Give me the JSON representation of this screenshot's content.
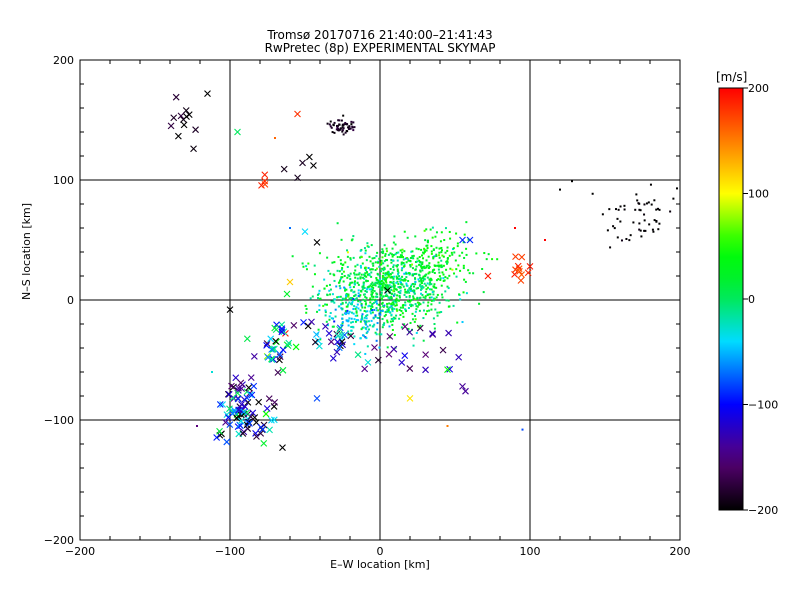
{
  "chart_data": {
    "type": "scatter",
    "title": "Tromsø 20170716 21:40:00–21:41:43",
    "subtitle": "RwPretec (8p) EXPERIMENTAL SKYMAP",
    "xlabel": "E–W location [km]",
    "ylabel": "N–S location [km]",
    "xlim": [
      -200,
      200
    ],
    "ylim": [
      -200,
      200
    ],
    "xticks": [
      "−200",
      "−100",
      "0",
      "100",
      "200"
    ],
    "yticks": [
      "−200",
      "−100",
      "0",
      "100",
      "200"
    ],
    "grid": true,
    "markers": [
      "x",
      "."
    ],
    "colorbar": {
      "label": "[m/s]",
      "min": -200,
      "max": 200,
      "ticks": [
        "−200",
        "−100",
        "0",
        "100",
        "200"
      ],
      "colormap": "rainbow: black-purple-blue-cyan-green-yellow-red"
    },
    "clusters": [
      {
        "cx": 5,
        "cy": 10,
        "sx": 22,
        "sy": 18,
        "vmean": 10,
        "vsd": 25,
        "n": 900,
        "marker": "."
      },
      {
        "cx": 35,
        "cy": 35,
        "sx": 15,
        "sy": 12,
        "vmean": 30,
        "vsd": 15,
        "n": 160,
        "marker": "."
      },
      {
        "cx": -15,
        "cy": -15,
        "sx": 10,
        "sy": 10,
        "vmean": -40,
        "vsd": 20,
        "n": 120,
        "marker": "."
      },
      {
        "cx": -25,
        "cy": 145,
        "sx": 5,
        "sy": 3,
        "vmean": -190,
        "vsd": 8,
        "n": 55,
        "marker": "."
      },
      {
        "cx": 170,
        "cy": 70,
        "sx": 14,
        "sy": 10,
        "vmean": -200,
        "vsd": 3,
        "n": 55,
        "marker": "."
      },
      {
        "cx": -90,
        "cy": -90,
        "sx": 10,
        "sy": 15,
        "vmean": -120,
        "vsd": 70,
        "n": 90,
        "marker": "x"
      },
      {
        "cx": -70,
        "cy": -40,
        "sx": 8,
        "sy": 15,
        "vmean": -60,
        "vsd": 90,
        "n": 35,
        "marker": "x"
      },
      {
        "cx": 30,
        "cy": -40,
        "sx": 15,
        "sy": 10,
        "vmean": -150,
        "vsd": 20,
        "n": 20,
        "marker": "x"
      },
      {
        "cx": -30,
        "cy": -30,
        "sx": 10,
        "sy": 8,
        "vmean": -90,
        "vsd": 70,
        "n": 25,
        "marker": "x"
      },
      {
        "cx": 92,
        "cy": 25,
        "sx": 4,
        "sy": 7,
        "vmean": 180,
        "vsd": 10,
        "n": 10,
        "marker": "x"
      },
      {
        "cx": -130,
        "cy": 150,
        "sx": 6,
        "sy": 12,
        "vmean": -190,
        "vsd": 10,
        "n": 12,
        "marker": "x"
      },
      {
        "cx": -55,
        "cy": 112,
        "sx": 5,
        "sy": 6,
        "vmean": -190,
        "vsd": 8,
        "n": 5,
        "marker": "x"
      },
      {
        "cx": -78,
        "cy": 100,
        "sx": 3,
        "sy": 3,
        "vmean": 185,
        "vsd": 5,
        "n": 4,
        "marker": "x"
      }
    ],
    "points": [
      {
        "x": -115,
        "y": 172,
        "v": -200,
        "m": "x"
      },
      {
        "x": -55,
        "y": 155,
        "v": 180,
        "m": "x"
      },
      {
        "x": -95,
        "y": 140,
        "v": 0,
        "m": "x"
      },
      {
        "x": -42,
        "y": 48,
        "v": -200,
        "m": "x"
      },
      {
        "x": -50,
        "y": 57,
        "v": -40,
        "m": "x"
      },
      {
        "x": -60,
        "y": 15,
        "v": 120,
        "m": "x"
      },
      {
        "x": -62,
        "y": 5,
        "v": 20,
        "m": "x"
      },
      {
        "x": 55,
        "y": 50,
        "v": -90,
        "m": "x"
      },
      {
        "x": 60,
        "y": 50,
        "v": -90,
        "m": "x"
      },
      {
        "x": 20,
        "y": -82,
        "v": 110,
        "m": "x"
      },
      {
        "x": 55,
        "y": -72,
        "v": -140,
        "m": "x"
      },
      {
        "x": 57,
        "y": -76,
        "v": -140,
        "m": "x"
      },
      {
        "x": 45,
        "y": -58,
        "v": 50,
        "m": "x"
      },
      {
        "x": -100,
        "y": -8,
        "v": -200,
        "m": "x"
      },
      {
        "x": 5,
        "y": 8,
        "v": -200,
        "m": "x"
      },
      {
        "x": 72,
        "y": 20,
        "v": 190,
        "m": "x"
      },
      {
        "x": 100,
        "y": 28,
        "v": 190,
        "m": "x"
      },
      {
        "x": -42,
        "y": -82,
        "v": -80,
        "m": "x"
      },
      {
        "x": -8,
        "y": -52,
        "v": -30,
        "m": "x"
      },
      {
        "x": -65,
        "y": -123,
        "v": -200,
        "m": "x"
      },
      {
        "x": 120,
        "y": 92,
        "v": -200,
        "m": "."
      },
      {
        "x": 128,
        "y": 99,
        "v": -200,
        "m": "."
      },
      {
        "x": 198,
        "y": 93,
        "v": -200,
        "m": "."
      },
      {
        "x": 110,
        "y": 50,
        "v": 200,
        "m": "."
      },
      {
        "x": 90,
        "y": 60,
        "v": 200,
        "m": "."
      },
      {
        "x": 95,
        "y": -108,
        "v": -80,
        "m": "."
      },
      {
        "x": 45,
        "y": -105,
        "v": 150,
        "m": "."
      },
      {
        "x": -122,
        "y": -105,
        "v": -150,
        "m": "."
      },
      {
        "x": -112,
        "y": -60,
        "v": -30,
        "m": "."
      },
      {
        "x": -70,
        "y": 135,
        "v": 160,
        "m": "."
      },
      {
        "x": -60,
        "y": 60,
        "v": -70,
        "m": "."
      }
    ]
  }
}
